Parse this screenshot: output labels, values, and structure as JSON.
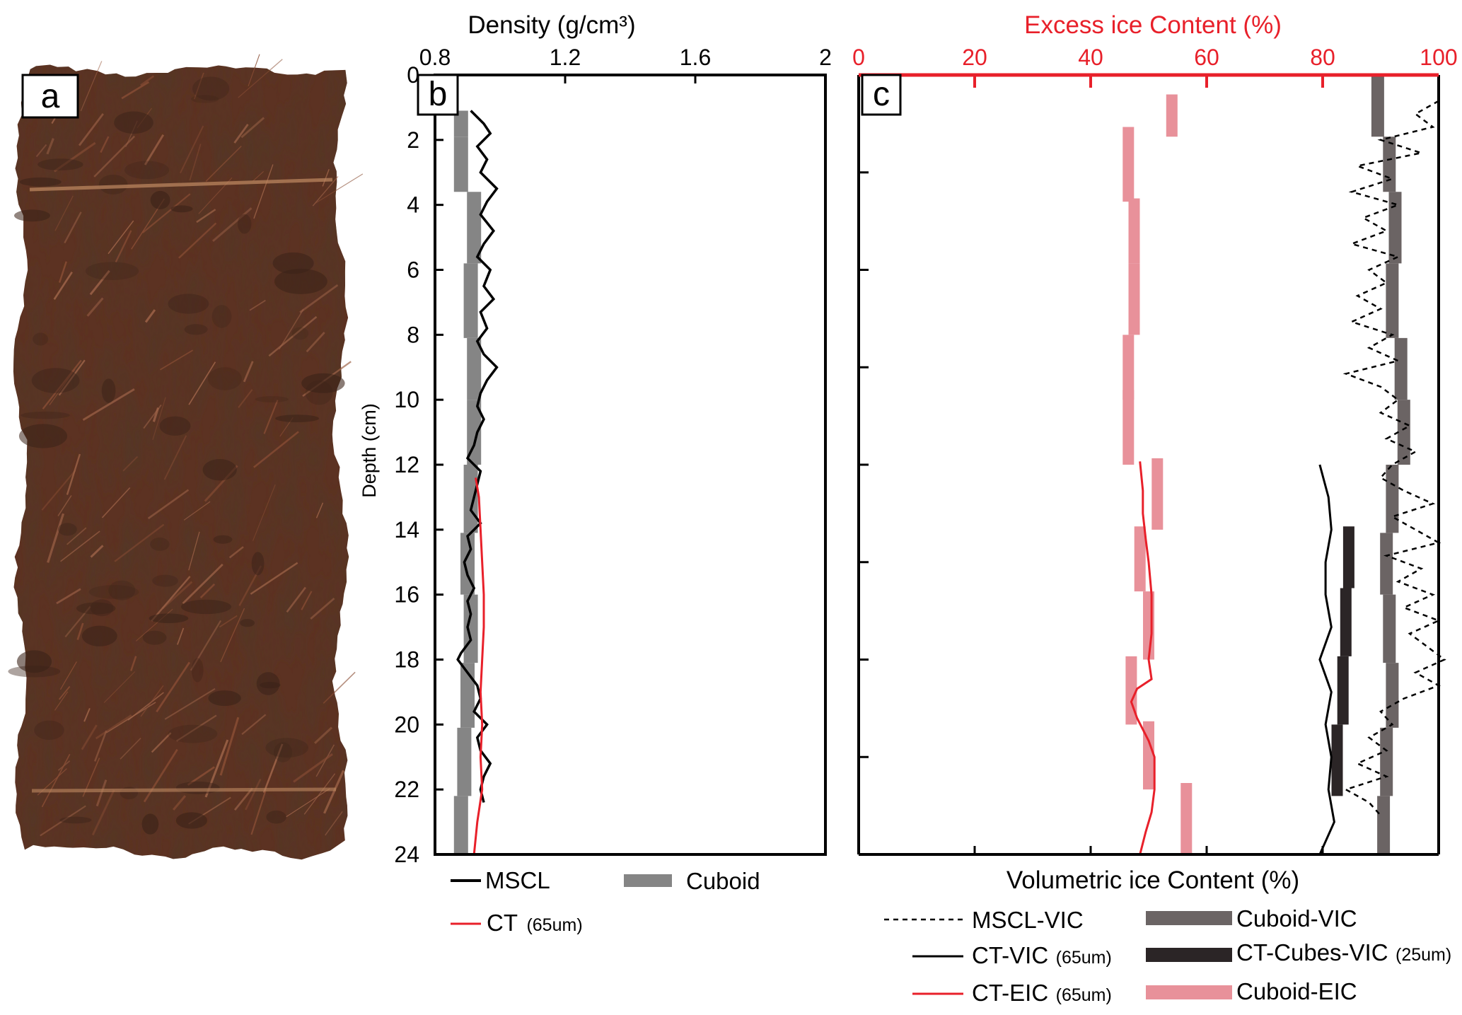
{
  "panels": {
    "a": {
      "label": "a"
    },
    "b": {
      "label": "b"
    },
    "c": {
      "label": "c"
    }
  },
  "colors": {
    "mscl": "#000000",
    "ct": "#e8202a",
    "cuboid": "#858585",
    "cuboid_vic": "#6b6464",
    "ct_cubes_vic": "#2b2526",
    "cuboid_eic": "#e8919a",
    "excess_axis": "#e8202a",
    "core_dark": "#3a2218",
    "core_mid": "#5c3222",
    "core_light": "#8a4e35"
  },
  "chart_data": [
    {
      "type": "line",
      "panel": "b",
      "xlabel": "Density (g/cm³)",
      "ylabel": "Depth (cm)",
      "xlim": [
        0.8,
        2.0
      ],
      "ylim": [
        24,
        0
      ],
      "x_ticks": [
        "0.8",
        "1.2",
        "1.6",
        "2"
      ],
      "y_ticks": [
        "0",
        "2",
        "4",
        "6",
        "8",
        "10",
        "12",
        "14",
        "16",
        "18",
        "20",
        "22",
        "24"
      ],
      "legend": [
        {
          "label": "MSCL",
          "style": "line"
        },
        {
          "label": "Cuboid",
          "style": "thick"
        },
        {
          "label": "CT",
          "sub": "(65um)",
          "style": "line-red"
        }
      ],
      "series": [
        {
          "name": "MSCL",
          "depth": [
            1.1,
            1.5,
            1.8,
            2.2,
            2.6,
            3.0,
            3.5,
            3.9,
            4.3,
            4.8,
            5.2,
            5.6,
            6.0,
            6.5,
            6.9,
            7.3,
            7.8,
            8.2,
            8.6,
            9.0,
            9.4,
            9.8,
            10.2,
            10.6,
            11.0,
            11.4,
            11.8,
            12.2,
            12.6,
            13.0,
            13.4,
            13.8,
            14.2,
            14.6,
            15.0,
            15.4,
            15.8,
            16.2,
            16.6,
            17.0,
            17.4,
            17.8,
            18.0,
            18.4,
            18.8,
            19.2,
            19.6,
            20.0,
            20.4,
            20.8,
            21.2,
            21.6,
            22.0,
            22.4
          ],
          "density": [
            0.91,
            0.95,
            0.97,
            0.93,
            0.96,
            0.94,
            0.99,
            0.96,
            0.94,
            0.98,
            0.95,
            0.93,
            0.97,
            0.95,
            0.98,
            0.94,
            0.96,
            0.93,
            0.95,
            0.99,
            0.96,
            0.94,
            0.93,
            0.95,
            0.93,
            0.92,
            0.9,
            0.94,
            0.93,
            0.92,
            0.91,
            0.94,
            0.9,
            0.91,
            0.89,
            0.9,
            0.92,
            0.9,
            0.91,
            0.9,
            0.91,
            0.88,
            0.87,
            0.9,
            0.93,
            0.94,
            0.92,
            0.96,
            0.93,
            0.94,
            0.97,
            0.95,
            0.94,
            0.95
          ]
        },
        {
          "name": "CT",
          "depth": [
            12.4,
            13.0,
            14.0,
            15.0,
            16.0,
            17.0,
            18.0,
            19.0,
            20.0,
            21.0,
            22.0,
            23.0,
            24.0
          ],
          "density": [
            0.925,
            0.935,
            0.94,
            0.945,
            0.95,
            0.95,
            0.945,
            0.94,
            0.945,
            0.94,
            0.945,
            0.93,
            0.92
          ]
        },
        {
          "name": "Cuboid",
          "segments": [
            {
              "x": 0.88,
              "from": 1.1,
              "to": 1.9
            },
            {
              "x": 0.88,
              "from": 1.9,
              "to": 3.6
            },
            {
              "x": 0.92,
              "from": 3.6,
              "to": 5.8
            },
            {
              "x": 0.91,
              "from": 5.8,
              "to": 8.1
            },
            {
              "x": 0.92,
              "from": 8.1,
              "to": 10.0
            },
            {
              "x": 0.92,
              "from": 10.0,
              "to": 12.0
            },
            {
              "x": 0.91,
              "from": 12.0,
              "to": 14.1
            },
            {
              "x": 0.9,
              "from": 14.1,
              "to": 16.0
            },
            {
              "x": 0.91,
              "from": 16.0,
              "to": 18.1
            },
            {
              "x": 0.9,
              "from": 18.1,
              "to": 20.1
            },
            {
              "x": 0.89,
              "from": 20.1,
              "to": 22.2
            },
            {
              "x": 0.88,
              "from": 22.2,
              "to": 24.0
            }
          ]
        }
      ]
    },
    {
      "type": "line",
      "panel": "c",
      "xlabel": "Volumetric ice Content (%)",
      "x2label": "Excess ice Content (%)",
      "xlim": [
        0,
        100
      ],
      "ylim": [
        24,
        0
      ],
      "x2_ticks": [
        "0",
        "20",
        "40",
        "60",
        "80",
        "100"
      ],
      "legend": [
        {
          "label": "MSCL-VIC",
          "style": "dashed"
        },
        {
          "label": "Cuboid-VIC",
          "style": "thick-gray"
        },
        {
          "label": "CT-VIC",
          "sub": "(65um)",
          "style": "line"
        },
        {
          "label": "CT-Cubes-VIC",
          "sub": "(25um)",
          "style": "thick-black"
        },
        {
          "label": "CT-EIC",
          "sub": "(65um)",
          "style": "line-red"
        },
        {
          "label": "Cuboid-EIC",
          "style": "thick-pink"
        }
      ],
      "series": [
        {
          "name": "MSCL-VIC",
          "depth": [
            0.8,
            1.2,
            1.6,
            2.0,
            2.4,
            2.8,
            3.2,
            3.6,
            4.0,
            4.4,
            4.8,
            5.2,
            5.6,
            6.0,
            6.4,
            6.8,
            7.2,
            7.6,
            8.0,
            8.4,
            8.8,
            9.2,
            9.6,
            10.0,
            10.4,
            10.8,
            11.2,
            11.6,
            12.0,
            12.4,
            12.8,
            13.2,
            13.6,
            14.0,
            14.4,
            14.8,
            15.2,
            15.6,
            16.0,
            16.4,
            16.8,
            17.2,
            17.6,
            18.0,
            18.4,
            18.8,
            19.2,
            19.6,
            20.0,
            20.4,
            20.8,
            21.2,
            21.6,
            22.0,
            22.4,
            22.8
          ],
          "vic": [
            100,
            96,
            99,
            90,
            97,
            86,
            92,
            85,
            93,
            87,
            91,
            85,
            93,
            88,
            91,
            86,
            90,
            85,
            92,
            88,
            93,
            84,
            90,
            93,
            90,
            95,
            91,
            96,
            92,
            90,
            94,
            99,
            92,
            96,
            100,
            91,
            97,
            93,
            99,
            94,
            100,
            95,
            98,
            101,
            96,
            100,
            94,
            90,
            92,
            88,
            91,
            86,
            91,
            84,
            88,
            90
          ]
        },
        {
          "name": "CT-VIC",
          "depth": [
            12.0,
            13.0,
            14.0,
            15.0,
            16.0,
            17.0,
            18.0,
            19.0,
            20.0,
            21.0,
            22.0,
            23.0,
            24.0
          ],
          "vic": [
            79.5,
            81,
            81.5,
            80.5,
            80.5,
            81.5,
            79.5,
            81.5,
            80.5,
            81.5,
            81,
            82,
            79.5
          ]
        },
        {
          "name": "CT-EIC",
          "depth": [
            11.9,
            12.8,
            13.5,
            14.3,
            15.0,
            16.0,
            17.2,
            18.0,
            18.6,
            18.9,
            19.3,
            19.8,
            20.5,
            21.0,
            22.0,
            22.7,
            23.3,
            24.0
          ],
          "eic": [
            48.5,
            49,
            49,
            49.5,
            50,
            50.5,
            50.5,
            50,
            50.5,
            48,
            47,
            48,
            50,
            51,
            51,
            50.5,
            49.5,
            48.5
          ]
        },
        {
          "name": "Cuboid-VIC",
          "segments": [
            {
              "x": 89.5,
              "from": 0.0,
              "to": 1.9
            },
            {
              "x": 91.5,
              "from": 1.9,
              "to": 3.6
            },
            {
              "x": 92.5,
              "from": 3.6,
              "to": 5.8
            },
            {
              "x": 92,
              "from": 5.8,
              "to": 8.1
            },
            {
              "x": 93.5,
              "from": 8.1,
              "to": 10.0
            },
            {
              "x": 94,
              "from": 10.0,
              "to": 12.0
            },
            {
              "x": 92,
              "from": 12.0,
              "to": 14.1
            },
            {
              "x": 91,
              "from": 14.1,
              "to": 16.0
            },
            {
              "x": 91.5,
              "from": 16.0,
              "to": 18.1
            },
            {
              "x": 92,
              "from": 18.1,
              "to": 20.1
            },
            {
              "x": 91,
              "from": 20.1,
              "to": 22.2
            },
            {
              "x": 90.5,
              "from": 22.2,
              "to": 24.0
            }
          ]
        },
        {
          "name": "CT-Cubes-VIC",
          "segments": [
            {
              "x": 84.5,
              "from": 13.9,
              "to": 15.8
            },
            {
              "x": 84,
              "from": 15.8,
              "to": 17.9
            },
            {
              "x": 83.5,
              "from": 17.9,
              "to": 20.0
            },
            {
              "x": 82.5,
              "from": 20.0,
              "to": 22.2
            }
          ]
        },
        {
          "name": "Cuboid-EIC",
          "segments": [
            {
              "x": 54,
              "from": 0.6,
              "to": 1.9
            },
            {
              "x": 46.5,
              "from": 1.6,
              "to": 3.9
            },
            {
              "x": 47.5,
              "from": 3.8,
              "to": 5.8
            },
            {
              "x": 47.5,
              "from": 5.8,
              "to": 8.0
            },
            {
              "x": 46.5,
              "from": 8.0,
              "to": 10.0
            },
            {
              "x": 46.5,
              "from": 9.7,
              "to": 12.0
            },
            {
              "x": 51.5,
              "from": 11.8,
              "to": 14.0
            },
            {
              "x": 48.5,
              "from": 13.9,
              "to": 15.9
            },
            {
              "x": 50,
              "from": 15.9,
              "to": 18.0
            },
            {
              "x": 47,
              "from": 17.9,
              "to": 20.0
            },
            {
              "x": 50,
              "from": 19.9,
              "to": 22.0
            },
            {
              "x": 56.5,
              "from": 21.8,
              "to": 24.0
            }
          ]
        }
      ]
    }
  ]
}
